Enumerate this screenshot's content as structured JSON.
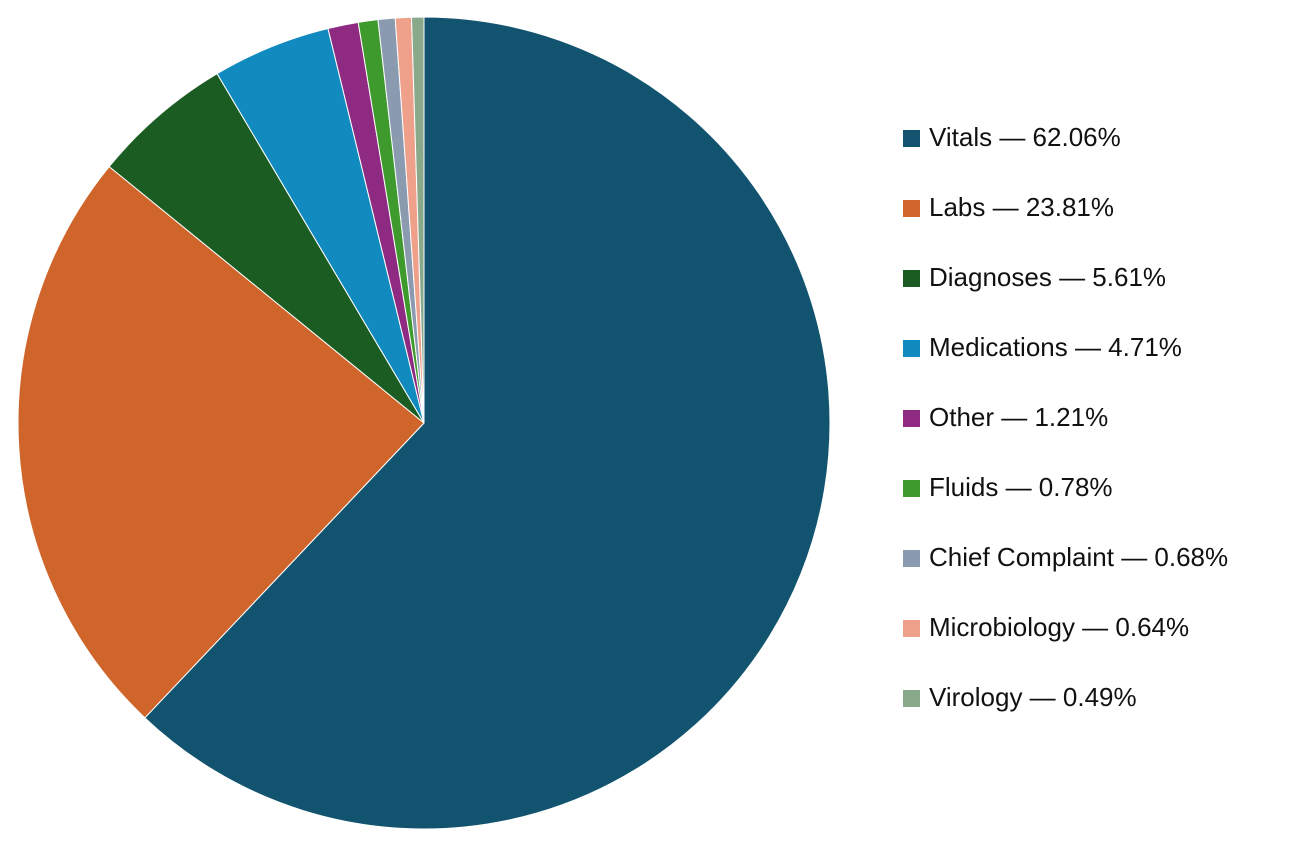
{
  "chart_data": {
    "type": "pie",
    "categories": [
      "Vitals — 62.06%",
      "Labs — 23.81%",
      "Diagnoses — 5.61%",
      "Medications — 4.71%",
      "Other — 1.21%",
      "Fluids — 0.78%",
      "Chief Complaint — 0.68%",
      "Microbiology — 0.64%",
      "Virology — 0.49%"
    ],
    "values": [
      62.06,
      23.81,
      5.61,
      4.71,
      1.21,
      0.78,
      0.68,
      0.64,
      0.49
    ],
    "colors": [
      "#12536f",
      "#cf652b",
      "#1a5c22",
      "#118abf",
      "#8e2a82",
      "#3e9a2c",
      "#8a9bb0",
      "#eea08a",
      "#8aa88a"
    ],
    "legend": "right"
  }
}
